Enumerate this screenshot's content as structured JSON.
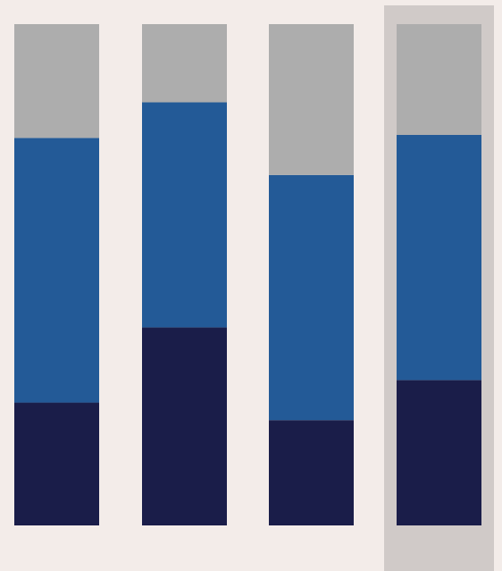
{
  "colors": {
    "background": "#f3ece9",
    "highlight_column": "#d0cac8",
    "segment_bottom": "#1a1d49",
    "segment_middle": "#235a97",
    "segment_top": "#adadad"
  },
  "chart_data": {
    "type": "bar",
    "stacked": true,
    "normalized": true,
    "title": "",
    "xlabel": "",
    "ylabel": "",
    "ylim": [
      0,
      100
    ],
    "grid": false,
    "legend": "none",
    "categories": [
      "",
      "",
      "",
      ""
    ],
    "highlighted_category_index": 3,
    "series": [
      {
        "color": "#1a1d49",
        "values": [
          24.5,
          39.5,
          21.0,
          29.0
        ]
      },
      {
        "color": "#235a97",
        "values": [
          52.8,
          44.9,
          48.9,
          48.9
        ]
      },
      {
        "color": "#adadad",
        "values": [
          22.7,
          15.6,
          30.1,
          22.1
        ]
      }
    ]
  }
}
